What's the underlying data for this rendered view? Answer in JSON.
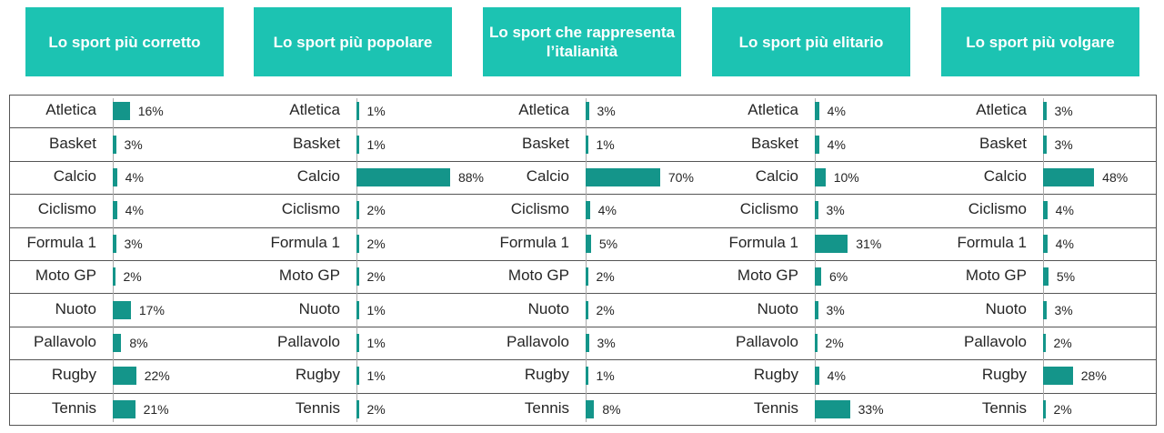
{
  "chart_data": {
    "type": "bar",
    "orientation": "horizontal",
    "accent_color": "#1cc3b2",
    "bar_color": "#14958a",
    "categories": [
      "Atletica",
      "Basket",
      "Calcio",
      "Ciclismo",
      "Formula 1",
      "Moto GP",
      "Nuoto",
      "Pallavolo",
      "Rugby",
      "Tennis"
    ],
    "series": [
      {
        "name": "Lo sport più corretto",
        "values": [
          16,
          3,
          4,
          4,
          3,
          2,
          17,
          8,
          22,
          21
        ],
        "labels": [
          "16%",
          "3%",
          "4%",
          "4%",
          "3%",
          "2%",
          "17%",
          "8%",
          "22%",
          "21%"
        ]
      },
      {
        "name": "Lo sport più popolare",
        "values": [
          1,
          1,
          88,
          2,
          2,
          2,
          1,
          1,
          1,
          2
        ],
        "labels": [
          "1%",
          "1%",
          "88%",
          "2%",
          "2%",
          "2%",
          "1%",
          "1%",
          "1%",
          "2%"
        ]
      },
      {
        "name": "Lo sport che rappresenta l’italianità",
        "values": [
          3,
          1,
          70,
          4,
          5,
          2,
          2,
          3,
          1,
          8
        ],
        "labels": [
          "3%",
          "1%",
          "70%",
          "4%",
          "5%",
          "2%",
          "2%",
          "3%",
          "1%",
          "8%"
        ]
      },
      {
        "name": "Lo sport più elitario",
        "values": [
          4,
          4,
          10,
          3,
          31,
          6,
          3,
          2,
          4,
          33
        ],
        "labels": [
          "4%",
          "4%",
          "10%",
          "3%",
          "31%",
          "6%",
          "3%",
          "2%",
          "4%",
          "33%"
        ]
      },
      {
        "name": "Lo sport più volgare",
        "values": [
          3,
          3,
          48,
          4,
          4,
          5,
          3,
          2,
          28,
          2
        ],
        "labels": [
          "3%",
          "3%",
          "48%",
          "4%",
          "4%",
          "5%",
          "3%",
          "2%",
          "28%",
          "2%"
        ]
      }
    ]
  }
}
